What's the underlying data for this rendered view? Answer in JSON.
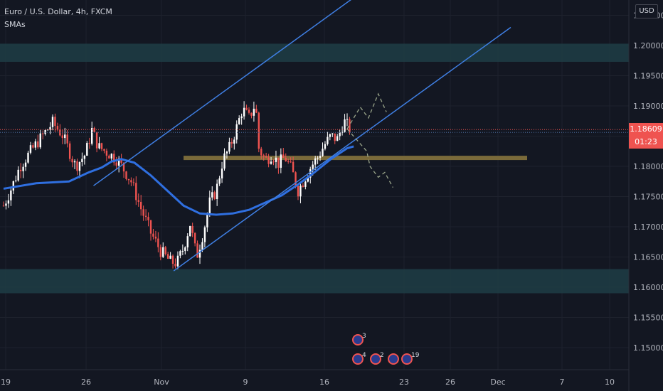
{
  "header": {
    "title": "Euro / U.S. Dollar, 4h, FXCM",
    "indicator": "SMAs"
  },
  "currency_button": "USD",
  "price_label": {
    "price": "1.18609",
    "countdown": "01:23"
  },
  "colors": {
    "background": "#131722",
    "up_candle": "#ffffff",
    "down_candle": "#ef5350",
    "sma": "#2f6fe0",
    "channel": "#3f7fe3",
    "zone": "#1f3d45",
    "support_line": "#7a6a3a",
    "projection": "#9aa58a"
  },
  "chart_data": {
    "type": "candlestick",
    "symbol": "Euro / U.S. Dollar",
    "timeframe": "4h",
    "y_tick_labels": [
      "1.20500",
      "1.20000",
      "1.19500",
      "1.19000",
      "1.18500",
      "1.18000",
      "1.17500",
      "1.17000",
      "1.16500",
      "1.16000",
      "1.15500",
      "1.15000"
    ],
    "x_tick_labels": [
      "19",
      "26",
      "Nov",
      "9",
      "16",
      "23",
      "26",
      "Dec",
      "7",
      "10"
    ],
    "last_price": 1.18609,
    "price_path": [
      {
        "x": 0,
        "y": 1.1735
      },
      {
        "x": 5,
        "y": 1.1765
      },
      {
        "x": 10,
        "y": 1.18
      },
      {
        "x": 18,
        "y": 1.183
      },
      {
        "x": 25,
        "y": 1.1855
      },
      {
        "x": 30,
        "y": 1.1872
      },
      {
        "x": 36,
        "y": 1.1852
      },
      {
        "x": 44,
        "y": 1.18
      },
      {
        "x": 50,
        "y": 1.182
      },
      {
        "x": 54,
        "y": 1.186
      },
      {
        "x": 58,
        "y": 1.1832
      },
      {
        "x": 64,
        "y": 1.1822
      },
      {
        "x": 70,
        "y": 1.181
      },
      {
        "x": 78,
        "y": 1.1775
      },
      {
        "x": 84,
        "y": 1.173
      },
      {
        "x": 90,
        "y": 1.169
      },
      {
        "x": 96,
        "y": 1.166
      },
      {
        "x": 102,
        "y": 1.1642
      },
      {
        "x": 106,
        "y": 1.164
      },
      {
        "x": 110,
        "y": 1.1665
      },
      {
        "x": 114,
        "y": 1.1705
      },
      {
        "x": 118,
        "y": 1.165
      },
      {
        "x": 122,
        "y": 1.169
      },
      {
        "x": 126,
        "y": 1.174
      },
      {
        "x": 130,
        "y": 1.176
      },
      {
        "x": 134,
        "y": 1.181
      },
      {
        "x": 138,
        "y": 1.183
      },
      {
        "x": 142,
        "y": 1.186
      },
      {
        "x": 146,
        "y": 1.1895
      },
      {
        "x": 150,
        "y": 1.188
      },
      {
        "x": 154,
        "y": 1.1905
      },
      {
        "x": 156,
        "y": 1.183
      },
      {
        "x": 160,
        "y": 1.181
      },
      {
        "x": 164,
        "y": 1.182
      },
      {
        "x": 168,
        "y": 1.1805
      },
      {
        "x": 172,
        "y": 1.1815
      },
      {
        "x": 176,
        "y": 1.1795
      },
      {
        "x": 180,
        "y": 1.176
      },
      {
        "x": 184,
        "y": 1.178
      },
      {
        "x": 188,
        "y": 1.18
      },
      {
        "x": 192,
        "y": 1.1815
      },
      {
        "x": 196,
        "y": 1.1835
      },
      {
        "x": 200,
        "y": 1.185
      },
      {
        "x": 204,
        "y": 1.1845
      },
      {
        "x": 208,
        "y": 1.1875
      },
      {
        "x": 212,
        "y": 1.1861
      }
    ],
    "sma": [
      {
        "x": 0,
        "y": 1.1763
      },
      {
        "x": 20,
        "y": 1.1772
      },
      {
        "x": 40,
        "y": 1.1775
      },
      {
        "x": 52,
        "y": 1.179
      },
      {
        "x": 60,
        "y": 1.1798
      },
      {
        "x": 66,
        "y": 1.1808
      },
      {
        "x": 72,
        "y": 1.1812
      },
      {
        "x": 80,
        "y": 1.1806
      },
      {
        "x": 90,
        "y": 1.1785
      },
      {
        "x": 100,
        "y": 1.176
      },
      {
        "x": 110,
        "y": 1.1735
      },
      {
        "x": 120,
        "y": 1.1722
      },
      {
        "x": 130,
        "y": 1.172
      },
      {
        "x": 140,
        "y": 1.1722
      },
      {
        "x": 150,
        "y": 1.1728
      },
      {
        "x": 160,
        "y": 1.174
      },
      {
        "x": 170,
        "y": 1.1752
      },
      {
        "x": 180,
        "y": 1.177
      },
      {
        "x": 190,
        "y": 1.179
      },
      {
        "x": 200,
        "y": 1.1812
      },
      {
        "x": 210,
        "y": 1.183
      },
      {
        "x": 214,
        "y": 1.1833
      }
    ],
    "channel_lower": [
      {
        "x": 104,
        "y": 1.1627
      },
      {
        "x": 310,
        "y": 1.203
      }
    ],
    "channel_upper": [
      {
        "x": 55,
        "y": 1.1768
      },
      {
        "x": 240,
        "y": 1.213
      }
    ],
    "zones": [
      {
        "from": 1.1973,
        "to": 1.2003
      },
      {
        "from": 1.159,
        "to": 1.163
      }
    ],
    "support_line": {
      "y": 1.1814,
      "x_from": 110,
      "x_to": 320
    },
    "projection": [
      {
        "x": 210,
        "y": 1.1862
      },
      {
        "x": 218,
        "y": 1.1898
      },
      {
        "x": 223,
        "y": 1.188
      },
      {
        "x": 229,
        "y": 1.192
      },
      {
        "x": 234,
        "y": 1.189
      },
      {
        "x": 222,
        "y": 1.1825
      },
      {
        "x": 224,
        "y": 1.18
      },
      {
        "x": 229,
        "y": 1.1782
      },
      {
        "x": 233,
        "y": 1.179
      },
      {
        "x": 238,
        "y": 1.1765
      }
    ],
    "grid": true
  }
}
